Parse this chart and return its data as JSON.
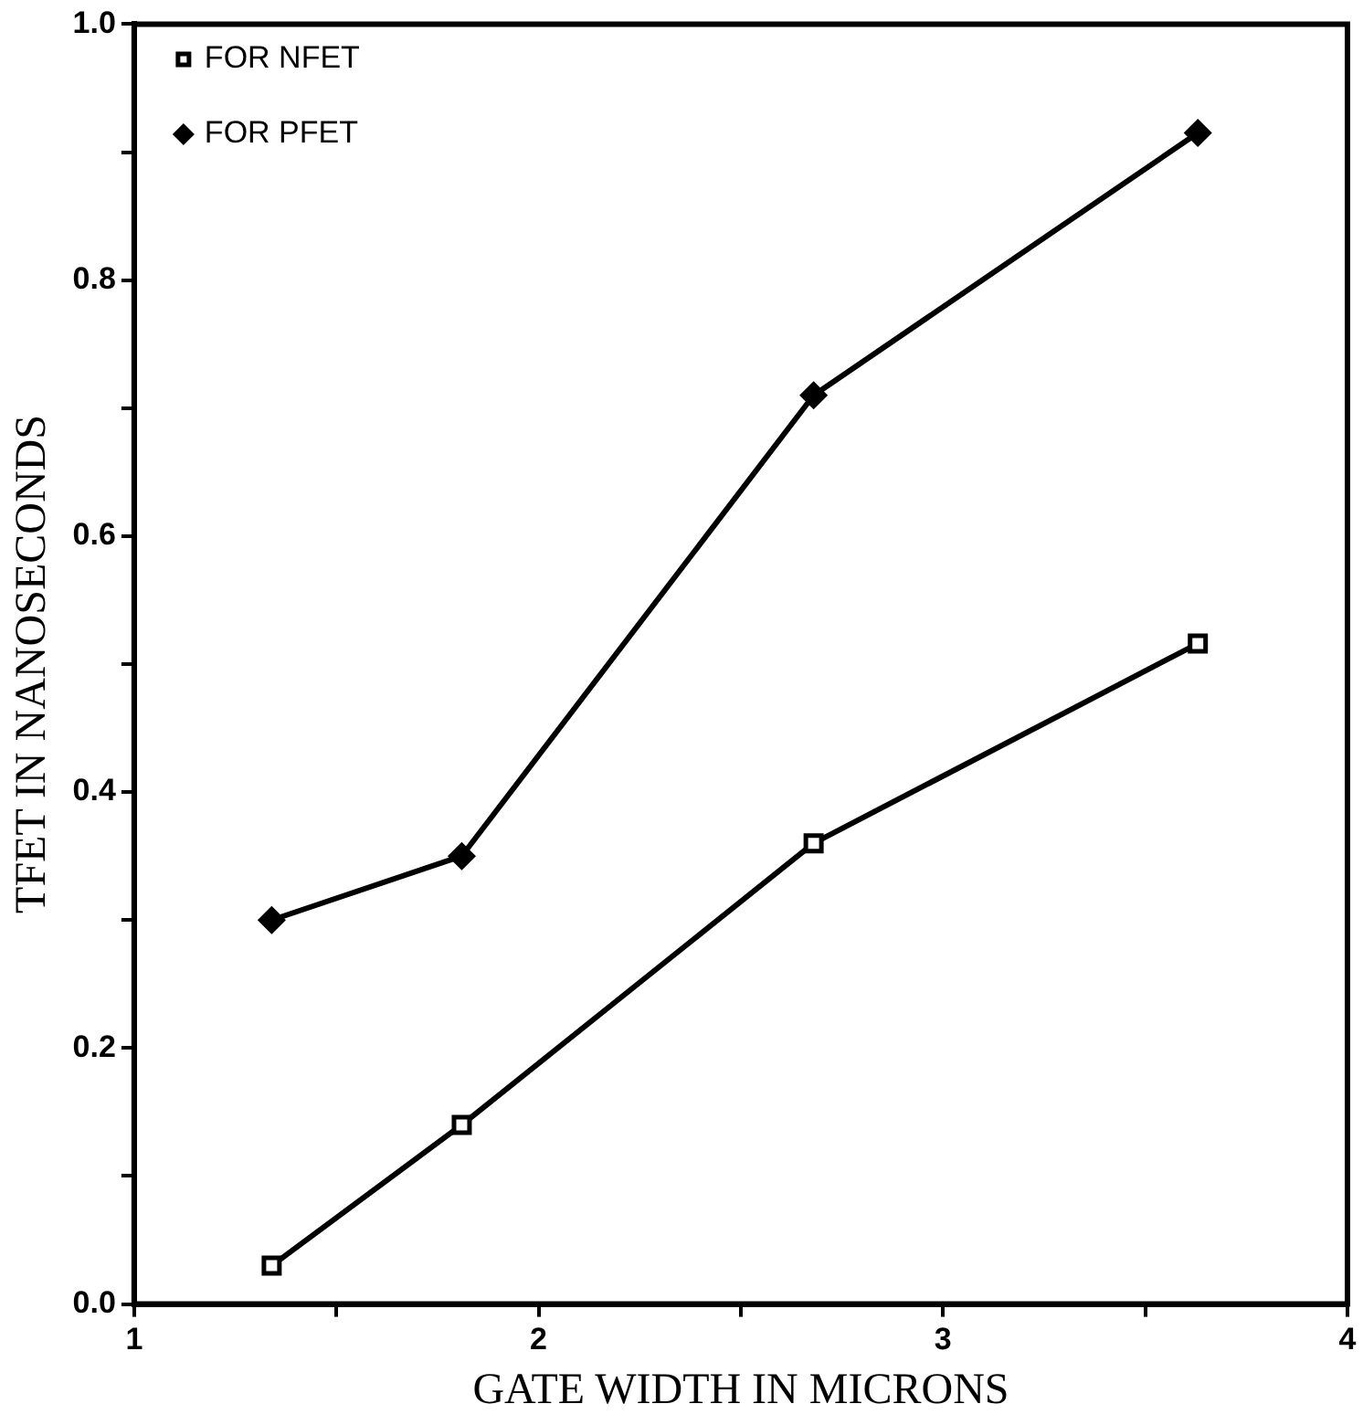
{
  "chart_data": {
    "type": "line",
    "xlabel": "GATE WIDTH IN MICRONS",
    "ylabel": "TFET IN NANOSECONDS",
    "xlim": [
      1,
      4
    ],
    "xticks": [
      1,
      {
        "value": 1.5,
        "label": null
      },
      2,
      {
        "value": 2.5,
        "label": null
      },
      3,
      {
        "value": 3.5,
        "label": null
      },
      4
    ],
    "ylim": [
      0,
      1
    ],
    "yticks": [
      {
        "value": 0,
        "label": "0.0"
      },
      {
        "value": 0.1,
        "label": null
      },
      0.2,
      {
        "value": 0.3,
        "label": null
      },
      0.4,
      {
        "value": 0.5,
        "label": null
      },
      0.6,
      {
        "value": 0.7,
        "label": null
      },
      0.8,
      {
        "value": 0.9,
        "label": null
      },
      {
        "value": 1,
        "label": "1.0"
      }
    ],
    "grid": false,
    "legend": "top left",
    "line_style": "solid",
    "series": [
      {
        "name": "FOR NFET",
        "color": "#000000",
        "marker": "square",
        "x": [
          1.34,
          1.81,
          2.68,
          3.63
        ],
        "values": [
          0.03,
          0.14,
          0.36,
          0.516
        ]
      },
      {
        "name": "FOR PFET",
        "color": "#000000",
        "marker": "diamond",
        "x": [
          1.34,
          1.81,
          2.68,
          3.63
        ],
        "values": [
          0.3,
          0.35,
          0.71,
          0.915
        ]
      }
    ]
  }
}
